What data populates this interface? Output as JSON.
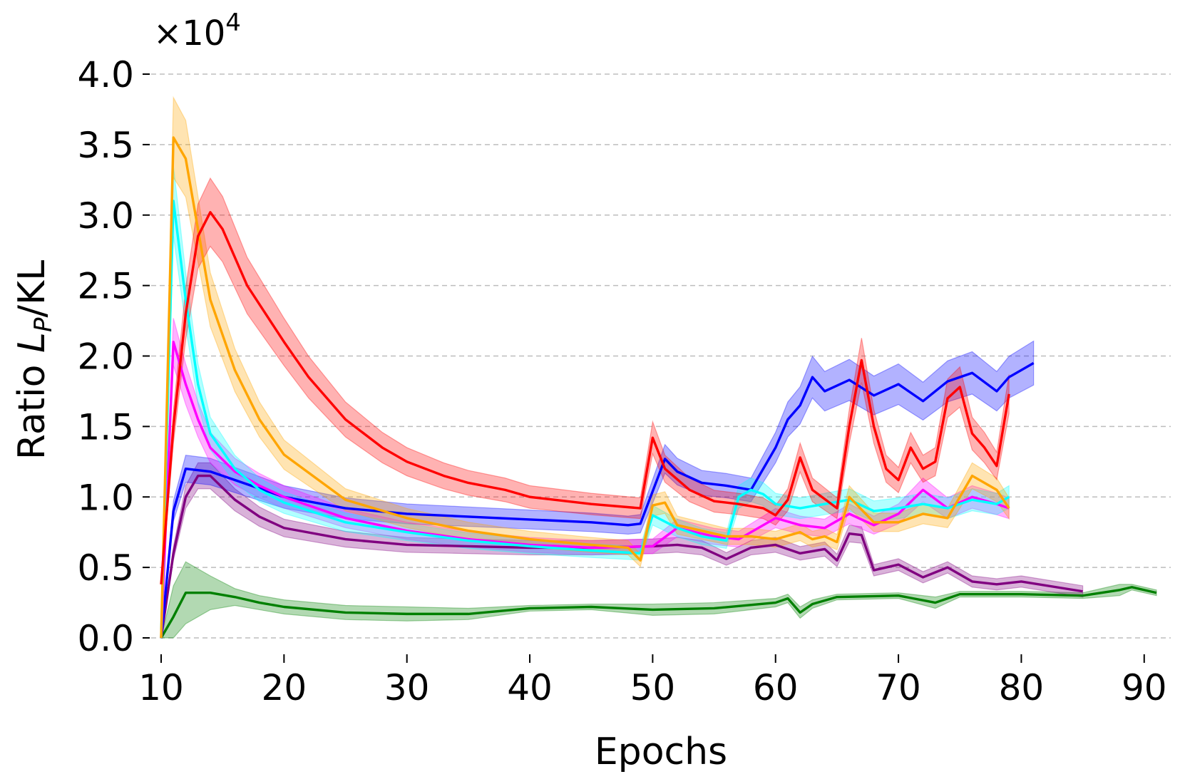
{
  "chart_data": {
    "type": "line",
    "title": "",
    "xlabel": "Epochs",
    "ylabel": {
      "prefix": "Ratio ",
      "var": "L",
      "sub": "P",
      "suffix": "/KL"
    },
    "offset_text": {
      "base": "×10",
      "exp": "4"
    },
    "xlim": [
      10,
      91
    ],
    "ylim": [
      0,
      4.0
    ],
    "x_ticks": [
      10,
      20,
      30,
      40,
      50,
      60,
      70,
      80,
      90
    ],
    "x_tick_labels": [
      "10",
      "20",
      "30",
      "40",
      "50",
      "60",
      "70",
      "80",
      "90"
    ],
    "y_ticks": [
      0,
      0.5,
      1.0,
      1.5,
      2.0,
      2.5,
      3.0,
      3.5,
      4.0
    ],
    "y_tick_labels": [
      "0.0",
      "0.5",
      "1.0",
      "1.5",
      "2.0",
      "2.5",
      "3.0",
      "3.5",
      "4.0"
    ],
    "grid": "horizontal dashed",
    "series": [
      {
        "name": "green",
        "color": "#008000",
        "x": [
          10,
          11,
          12,
          14,
          16,
          18,
          20,
          25,
          30,
          35,
          40,
          45,
          50,
          55,
          60,
          61,
          62,
          63,
          65,
          70,
          73,
          74,
          75,
          80,
          85,
          88,
          89,
          91
        ],
        "y": [
          0.0,
          0.15,
          0.32,
          0.32,
          0.29,
          0.25,
          0.22,
          0.18,
          0.17,
          0.17,
          0.21,
          0.22,
          0.2,
          0.21,
          0.25,
          0.28,
          0.18,
          0.24,
          0.29,
          0.3,
          0.25,
          0.28,
          0.31,
          0.31,
          0.3,
          0.34,
          0.36,
          0.32
        ],
        "band": [
          0.0,
          0.22,
          0.22,
          0.12,
          0.06,
          0.05,
          0.05,
          0.05,
          0.05,
          0.04,
          0.02,
          0.02,
          0.04,
          0.04,
          0.03,
          0.03,
          0.04,
          0.03,
          0.02,
          0.02,
          0.04,
          0.03,
          0.02,
          0.02,
          0.02,
          0.04,
          0.02,
          0.02
        ]
      },
      {
        "name": "purple",
        "color": "#800080",
        "x": [
          10,
          11,
          12,
          13,
          14,
          16,
          18,
          20,
          25,
          30,
          35,
          40,
          45,
          50,
          52,
          54,
          56,
          58,
          60,
          62,
          64,
          65,
          66,
          67,
          68,
          70,
          72,
          74,
          76,
          78,
          80,
          85
        ],
        "y": [
          0.0,
          0.6,
          1.0,
          1.15,
          1.15,
          0.98,
          0.86,
          0.78,
          0.7,
          0.66,
          0.65,
          0.64,
          0.64,
          0.65,
          0.66,
          0.64,
          0.56,
          0.64,
          0.66,
          0.6,
          0.63,
          0.55,
          0.74,
          0.73,
          0.48,
          0.52,
          0.43,
          0.5,
          0.4,
          0.38,
          0.4,
          0.33
        ]
      },
      {
        "name": "blue",
        "color": "#0000ff",
        "x": [
          10,
          11,
          12,
          14,
          16,
          18,
          20,
          25,
          30,
          35,
          40,
          45,
          48,
          49,
          51,
          52,
          54,
          56,
          58,
          60,
          61,
          62,
          63,
          64,
          66,
          68,
          70,
          72,
          74,
          76,
          78,
          79,
          81
        ],
        "y": [
          0.0,
          0.9,
          1.2,
          1.18,
          1.12,
          1.06,
          1.0,
          0.92,
          0.88,
          0.86,
          0.84,
          0.82,
          0.8,
          0.81,
          1.27,
          1.18,
          1.1,
          1.08,
          1.05,
          1.35,
          1.55,
          1.65,
          1.85,
          1.75,
          1.83,
          1.72,
          1.8,
          1.68,
          1.82,
          1.88,
          1.75,
          1.85,
          1.95
        ]
      },
      {
        "name": "magenta",
        "color": "#ff00ff",
        "x": [
          10,
          11,
          12,
          13,
          14,
          16,
          18,
          20,
          25,
          30,
          35,
          40,
          45,
          50,
          52,
          55,
          57,
          60,
          62,
          64,
          66,
          68,
          70,
          72,
          74,
          76,
          78,
          79
        ],
        "y": [
          0.0,
          2.1,
          1.8,
          1.55,
          1.35,
          1.18,
          1.08,
          1.0,
          0.85,
          0.76,
          0.7,
          0.66,
          0.64,
          0.65,
          0.78,
          0.72,
          0.7,
          0.85,
          0.8,
          0.78,
          0.88,
          0.8,
          0.88,
          1.05,
          0.92,
          1.0,
          0.95,
          0.92
        ]
      },
      {
        "name": "cyan",
        "color": "#00ffff",
        "x": [
          10,
          11,
          12,
          13,
          14,
          16,
          18,
          20,
          25,
          30,
          35,
          40,
          45,
          49,
          50,
          52,
          54,
          56,
          57,
          58,
          59,
          60,
          62,
          64,
          66,
          68,
          70,
          72,
          74,
          76,
          78,
          79
        ],
        "y": [
          0.0,
          3.1,
          2.4,
          1.8,
          1.45,
          1.2,
          1.05,
          0.96,
          0.82,
          0.75,
          0.69,
          0.65,
          0.62,
          0.6,
          0.87,
          0.78,
          0.72,
          0.69,
          1.0,
          1.05,
          1.02,
          0.95,
          0.92,
          0.95,
          0.98,
          0.9,
          0.92,
          0.95,
          0.92,
          0.98,
          0.95,
          1.0
        ]
      },
      {
        "name": "orange",
        "color": "#ffa500",
        "x": [
          10,
          11,
          12,
          13,
          14,
          16,
          18,
          20,
          25,
          30,
          35,
          40,
          45,
          48,
          49,
          50,
          51,
          52,
          54,
          56,
          58,
          60,
          62,
          63,
          64,
          65,
          66,
          68,
          70,
          72,
          74,
          75,
          76,
          78,
          79
        ],
        "y": [
          0.0,
          3.55,
          3.4,
          2.9,
          2.4,
          1.9,
          1.55,
          1.3,
          0.98,
          0.85,
          0.76,
          0.7,
          0.66,
          0.64,
          0.55,
          0.94,
          0.96,
          0.8,
          0.76,
          0.72,
          0.72,
          0.7,
          0.75,
          0.7,
          0.72,
          0.68,
          1.0,
          0.82,
          0.82,
          0.88,
          0.85,
          1.0,
          1.15,
          1.05,
          0.92
        ]
      },
      {
        "name": "red",
        "color": "#ff0000",
        "x": [
          10,
          11,
          12,
          13,
          14,
          15,
          17,
          20,
          22,
          25,
          28,
          30,
          33,
          35,
          38,
          40,
          45,
          49,
          50,
          51,
          53,
          55,
          57,
          59,
          60,
          61,
          62,
          63,
          65,
          66,
          67,
          68,
          69,
          70,
          71,
          72,
          73,
          74,
          75,
          76,
          77,
          78,
          79
        ],
        "y": [
          0.38,
          1.5,
          2.3,
          2.85,
          3.02,
          2.9,
          2.5,
          2.1,
          1.85,
          1.55,
          1.35,
          1.25,
          1.15,
          1.1,
          1.05,
          1.0,
          0.95,
          0.92,
          1.42,
          1.2,
          1.05,
          0.97,
          0.95,
          0.92,
          0.87,
          0.98,
          1.28,
          1.05,
          0.92,
          1.5,
          1.97,
          1.5,
          1.2,
          1.12,
          1.35,
          1.2,
          1.25,
          1.7,
          1.78,
          1.45,
          1.35,
          1.22,
          1.73
        ]
      }
    ]
  }
}
